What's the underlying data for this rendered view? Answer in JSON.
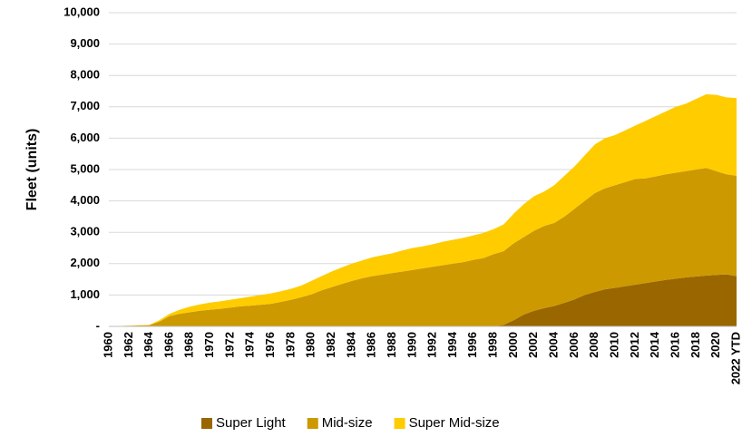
{
  "chart_data": {
    "type": "stacked-area",
    "y_label": "Fleet (units)",
    "categories": [
      "1960",
      null,
      "1962",
      null,
      "1964",
      null,
      "1966",
      null,
      "1968",
      null,
      "1970",
      null,
      "1972",
      null,
      "1974",
      null,
      "1976",
      null,
      "1978",
      null,
      "1980",
      null,
      "1982",
      null,
      "1984",
      null,
      "1986",
      null,
      "1988",
      null,
      "1990",
      null,
      "1992",
      null,
      "1994",
      null,
      "1996",
      null,
      "1998",
      null,
      "2000",
      null,
      "2002",
      null,
      "2004",
      null,
      "2006",
      null,
      "2008",
      null,
      "2010",
      null,
      "2012",
      null,
      "2014",
      null,
      "2016",
      null,
      "2018",
      null,
      "2020",
      null,
      "2022 YTD"
    ],
    "series": [
      {
        "name": "Super Light",
        "color": "#996600",
        "values": [
          0,
          0,
          0,
          0,
          0,
          0,
          0,
          0,
          0,
          0,
          0,
          0,
          0,
          0,
          0,
          0,
          0,
          0,
          0,
          0,
          0,
          0,
          0,
          0,
          0,
          0,
          0,
          0,
          0,
          0,
          0,
          0,
          0,
          0,
          0,
          0,
          0,
          0,
          0,
          50,
          200,
          380,
          500,
          580,
          650,
          750,
          860,
          1000,
          1100,
          1180,
          1230,
          1280,
          1330,
          1380,
          1430,
          1480,
          1520,
          1560,
          1590,
          1620,
          1640,
          1660,
          1600
        ]
      },
      {
        "name": "Mid-size",
        "color": "#cc9900",
        "values": [
          0,
          10,
          20,
          30,
          40,
          150,
          330,
          400,
          450,
          500,
          530,
          560,
          600,
          640,
          660,
          690,
          720,
          780,
          850,
          930,
          1020,
          1150,
          1250,
          1350,
          1450,
          1530,
          1600,
          1650,
          1700,
          1750,
          1800,
          1850,
          1900,
          1950,
          2000,
          2050,
          2120,
          2180,
          2300,
          2350,
          2450,
          2470,
          2550,
          2620,
          2650,
          2750,
          2890,
          3000,
          3150,
          3220,
          3270,
          3320,
          3370,
          3340,
          3350,
          3370,
          3380,
          3390,
          3410,
          3430,
          3310,
          3190,
          3200
        ]
      },
      {
        "name": "Super Mid-size",
        "color": "#ffcc00",
        "values": [
          0,
          0,
          10,
          10,
          10,
          50,
          70,
          130,
          180,
          200,
          230,
          240,
          250,
          260,
          290,
          310,
          330,
          340,
          350,
          370,
          430,
          450,
          500,
          530,
          550,
          570,
          600,
          620,
          630,
          670,
          700,
          700,
          720,
          750,
          760,
          770,
          780,
          800,
          800,
          850,
          950,
          1050,
          1100,
          1100,
          1200,
          1300,
          1350,
          1450,
          1550,
          1600,
          1600,
          1650,
          1700,
          1830,
          1920,
          2000,
          2100,
          2150,
          2250,
          2350,
          2430,
          2450,
          2480
        ]
      }
    ],
    "ylim": [
      0,
      10000
    ],
    "yticks": [
      {
        "value": 0,
        "label": "-"
      },
      {
        "value": 1000,
        "label": "1,000"
      },
      {
        "value": 2000,
        "label": "2,000"
      },
      {
        "value": 3000,
        "label": "3,000"
      },
      {
        "value": 4000,
        "label": "4,000"
      },
      {
        "value": 5000,
        "label": "5,000"
      },
      {
        "value": 6000,
        "label": "6,000"
      },
      {
        "value": 7000,
        "label": "7,000"
      },
      {
        "value": 8000,
        "label": "8,000"
      },
      {
        "value": 9000,
        "label": "9,000"
      },
      {
        "value": 10000,
        "label": "10,000"
      }
    ],
    "grid": true,
    "legend": "bottom"
  }
}
